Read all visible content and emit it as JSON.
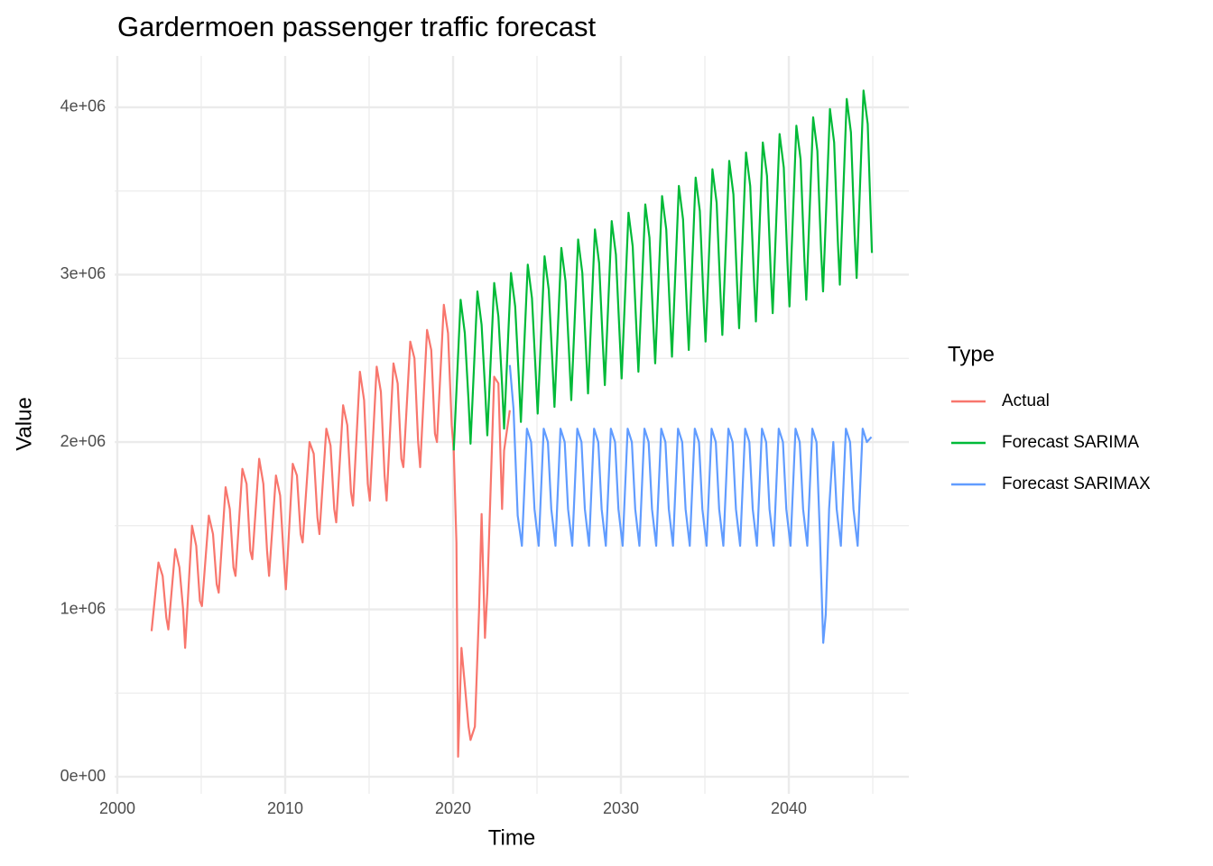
{
  "chart_data": {
    "type": "line",
    "title": "Gardermoen passenger traffic forecast",
    "x_label": "Time",
    "y_label": "Value",
    "legend_title": "Type",
    "legend_position": "right",
    "grid": true,
    "xlim": [
      1999.85,
      2047.15
    ],
    "xticks": [
      2000,
      2010,
      2020,
      2030,
      2040
    ],
    "xminor": [
      2005,
      2015,
      2025,
      2035,
      2045
    ],
    "ylim": [
      -102000,
      4307000
    ],
    "yticks": [
      {
        "value": 0,
        "label": "0e+00"
      },
      {
        "value": 1000000,
        "label": "1e+06"
      },
      {
        "value": 2000000,
        "label": "2e+06"
      },
      {
        "value": 3000000,
        "label": "3e+06"
      },
      {
        "value": 4000000,
        "label": "4e+06"
      }
    ],
    "yminor": [
      500000,
      1500000,
      2500000,
      3500000
    ],
    "series": [
      {
        "name": "Actual",
        "color": "#F8766D",
        "x": [
          2002.04,
          2002.45,
          2002.7,
          2002.92,
          2003.04,
          2003.45,
          2003.7,
          2003.92,
          2004.04,
          2004.45,
          2004.7,
          2004.92,
          2005.04,
          2005.45,
          2005.7,
          2005.92,
          2006.04,
          2006.45,
          2006.7,
          2006.92,
          2007.04,
          2007.45,
          2007.7,
          2007.92,
          2008.04,
          2008.45,
          2008.7,
          2008.92,
          2009.04,
          2009.45,
          2009.7,
          2009.92,
          2010.04,
          2010.45,
          2010.7,
          2010.92,
          2011.04,
          2011.45,
          2011.7,
          2011.92,
          2012.04,
          2012.45,
          2012.7,
          2012.92,
          2013.04,
          2013.45,
          2013.7,
          2013.92,
          2014.04,
          2014.45,
          2014.7,
          2014.92,
          2015.04,
          2015.45,
          2015.7,
          2015.92,
          2016.04,
          2016.45,
          2016.7,
          2016.92,
          2017.04,
          2017.45,
          2017.7,
          2017.92,
          2018.04,
          2018.45,
          2018.7,
          2018.92,
          2019.04,
          2019.45,
          2019.7,
          2019.92,
          2020.04,
          2020.2,
          2020.3,
          2020.5,
          2020.7,
          2020.92,
          2021.04,
          2021.3,
          2021.55,
          2021.7,
          2021.9,
          2022.04,
          2022.45,
          2022.7,
          2022.92,
          2023.04,
          2023.38
        ],
        "values": [
          870000,
          1280000,
          1200000,
          950000,
          880000,
          1360000,
          1250000,
          1000000,
          770000,
          1500000,
          1380000,
          1050000,
          1020000,
          1560000,
          1450000,
          1150000,
          1100000,
          1730000,
          1600000,
          1250000,
          1200000,
          1840000,
          1750000,
          1350000,
          1300000,
          1900000,
          1750000,
          1350000,
          1200000,
          1800000,
          1680000,
          1300000,
          1120000,
          1870000,
          1800000,
          1450000,
          1400000,
          2000000,
          1930000,
          1550000,
          1450000,
          2080000,
          1980000,
          1600000,
          1520000,
          2220000,
          2100000,
          1700000,
          1620000,
          2420000,
          2250000,
          1750000,
          1650000,
          2450000,
          2300000,
          1800000,
          1650000,
          2470000,
          2350000,
          1900000,
          1850000,
          2600000,
          2500000,
          2000000,
          1850000,
          2670000,
          2550000,
          2050000,
          2000000,
          2820000,
          2650000,
          2100000,
          1950000,
          1400000,
          120000,
          770000,
          550000,
          300000,
          220000,
          300000,
          1000000,
          1570000,
          830000,
          1100000,
          2390000,
          2350000,
          1600000,
          1950000,
          2190000
        ]
      },
      {
        "name": "Forecast SARIMA",
        "color": "#00BA38",
        "x": [
          2020.04,
          2020.45,
          2020.7,
          2020.92,
          2021.04,
          2021.45,
          2021.7,
          2021.92,
          2022.04,
          2022.45,
          2022.7,
          2022.92,
          2023.04,
          2023.45,
          2023.7,
          2023.92,
          2024.04,
          2024.45,
          2024.7,
          2024.92,
          2025.04,
          2025.45,
          2025.7,
          2025.92,
          2026.04,
          2026.45,
          2026.7,
          2026.92,
          2027.04,
          2027.45,
          2027.7,
          2027.92,
          2028.04,
          2028.45,
          2028.7,
          2028.92,
          2029.04,
          2029.45,
          2029.7,
          2029.92,
          2030.04,
          2030.45,
          2030.7,
          2030.92,
          2031.04,
          2031.45,
          2031.7,
          2031.92,
          2032.04,
          2032.45,
          2032.7,
          2032.92,
          2033.04,
          2033.45,
          2033.7,
          2033.92,
          2034.04,
          2034.45,
          2034.7,
          2034.92,
          2035.04,
          2035.45,
          2035.7,
          2035.92,
          2036.04,
          2036.45,
          2036.7,
          2036.92,
          2037.04,
          2037.45,
          2037.7,
          2037.92,
          2038.04,
          2038.45,
          2038.7,
          2038.92,
          2039.04,
          2039.45,
          2039.7,
          2039.92,
          2040.04,
          2040.45,
          2040.7,
          2040.92,
          2041.04,
          2041.45,
          2041.7,
          2041.92,
          2042.04,
          2042.45,
          2042.7,
          2042.92,
          2043.04,
          2043.45,
          2043.7,
          2043.92,
          2044.04,
          2044.45,
          2044.7,
          2044.95
        ],
        "values": [
          1950000,
          2850000,
          2650000,
          2250000,
          1990000,
          2900000,
          2700000,
          2290000,
          2040000,
          2950000,
          2750000,
          2340000,
          2080000,
          3010000,
          2810000,
          2380000,
          2120000,
          3060000,
          2860000,
          2420000,
          2170000,
          3110000,
          2910000,
          2470000,
          2210000,
          3160000,
          2960000,
          2510000,
          2250000,
          3210000,
          3010000,
          2550000,
          2290000,
          3270000,
          3070000,
          2590000,
          2340000,
          3320000,
          3120000,
          2640000,
          2380000,
          3370000,
          3170000,
          2680000,
          2420000,
          3420000,
          3220000,
          2720000,
          2470000,
          3470000,
          3270000,
          2770000,
          2510000,
          3530000,
          3330000,
          2810000,
          2550000,
          3580000,
          3380000,
          2850000,
          2600000,
          3630000,
          3430000,
          2900000,
          2640000,
          3680000,
          3480000,
          2940000,
          2680000,
          3730000,
          3530000,
          2980000,
          2720000,
          3790000,
          3590000,
          3020000,
          2770000,
          3840000,
          3640000,
          3070000,
          2810000,
          3890000,
          3690000,
          3110000,
          2850000,
          3940000,
          3740000,
          3150000,
          2900000,
          3990000,
          3790000,
          3200000,
          2940000,
          4050000,
          3850000,
          3240000,
          2980000,
          4100000,
          3900000,
          3130000
        ]
      },
      {
        "name": "Forecast SARIMAX",
        "color": "#619CFF",
        "x": [
          2023.38,
          2023.6,
          2023.85,
          2024.1,
          2024.4,
          2024.65,
          2024.85,
          2025.1,
          2025.4,
          2025.65,
          2025.85,
          2026.1,
          2026.4,
          2026.65,
          2026.85,
          2027.1,
          2027.4,
          2027.65,
          2027.85,
          2028.1,
          2028.4,
          2028.65,
          2028.85,
          2029.1,
          2029.4,
          2029.65,
          2029.85,
          2030.1,
          2030.4,
          2030.65,
          2030.85,
          2031.1,
          2031.4,
          2031.65,
          2031.85,
          2032.1,
          2032.4,
          2032.65,
          2032.85,
          2033.1,
          2033.4,
          2033.65,
          2033.85,
          2034.1,
          2034.4,
          2034.65,
          2034.85,
          2035.1,
          2035.4,
          2035.65,
          2035.85,
          2036.1,
          2036.4,
          2036.65,
          2036.85,
          2037.1,
          2037.4,
          2037.65,
          2037.85,
          2038.1,
          2038.4,
          2038.65,
          2038.85,
          2039.1,
          2039.4,
          2039.65,
          2039.85,
          2040.1,
          2040.4,
          2040.65,
          2040.85,
          2041.1,
          2041.4,
          2041.65,
          2041.85,
          2042.05,
          2042.2,
          2042.4,
          2042.65,
          2042.85,
          2043.1,
          2043.4,
          2043.65,
          2043.85,
          2044.1,
          2044.4,
          2044.65,
          2044.92
        ],
        "values": [
          2460000,
          2200000,
          1560000,
          1380000,
          2080000,
          2000000,
          1600000,
          1380000,
          2080000,
          2000000,
          1600000,
          1380000,
          2080000,
          2000000,
          1600000,
          1380000,
          2080000,
          2000000,
          1600000,
          1380000,
          2080000,
          2000000,
          1600000,
          1380000,
          2080000,
          2000000,
          1600000,
          1380000,
          2080000,
          2000000,
          1600000,
          1380000,
          2080000,
          2000000,
          1600000,
          1380000,
          2080000,
          2000000,
          1600000,
          1380000,
          2080000,
          2000000,
          1600000,
          1380000,
          2080000,
          2000000,
          1600000,
          1380000,
          2080000,
          2000000,
          1600000,
          1380000,
          2080000,
          2000000,
          1600000,
          1380000,
          2080000,
          2000000,
          1600000,
          1380000,
          2080000,
          2000000,
          1600000,
          1380000,
          2080000,
          2000000,
          1600000,
          1380000,
          2080000,
          2000000,
          1600000,
          1380000,
          2080000,
          2000000,
          1450000,
          800000,
          970000,
          1600000,
          2000000,
          1600000,
          1380000,
          2080000,
          2000000,
          1600000,
          1380000,
          2080000,
          2000000,
          2030000
        ]
      }
    ]
  }
}
